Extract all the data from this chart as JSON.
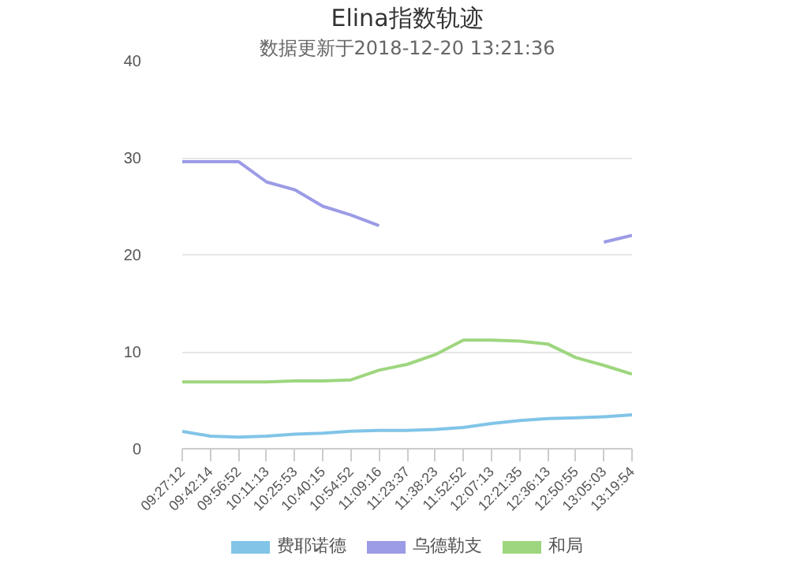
{
  "chart_data": {
    "type": "line",
    "title": "Elina指数轨迹",
    "subtitle": "数据更新于2018-12-20 13:21:36",
    "categories": [
      "09:27:12",
      "09:42:14",
      "09:56:52",
      "10:11:13",
      "10:25:53",
      "10:40:15",
      "10:54:52",
      "11:09:16",
      "11:23:37",
      "11:38:23",
      "11:52:52",
      "12:07:13",
      "12:21:35",
      "12:36:13",
      "12:50:55",
      "13:05:03",
      "13:19:54"
    ],
    "series": [
      {
        "name": "费耶诺德",
        "color": "#81c4e8",
        "values": [
          1.8,
          1.3,
          1.2,
          1.3,
          1.5,
          1.6,
          1.8,
          1.9,
          1.9,
          2.0,
          2.2,
          2.6,
          2.9,
          3.1,
          3.2,
          3.3,
          3.5
        ]
      },
      {
        "name": "乌德勒支",
        "color": "#9b9be6",
        "values": [
          29.6,
          29.6,
          29.6,
          27.5,
          26.7,
          25.0,
          24.1,
          23.0,
          null,
          null,
          null,
          null,
          null,
          null,
          null,
          21.3,
          22.0
        ]
      },
      {
        "name": "和局",
        "color": "#9ed67f",
        "values": [
          6.9,
          6.9,
          6.9,
          6.9,
          7.0,
          7.0,
          7.1,
          8.1,
          8.7,
          9.7,
          11.2,
          11.2,
          11.1,
          10.8,
          9.4,
          8.6,
          7.7
        ]
      }
    ],
    "ylim": [
      0,
      40
    ],
    "yticks": [
      0,
      10,
      20,
      30,
      40
    ],
    "grid": "y",
    "legend": "bottom",
    "marker": "none",
    "line_style": "solid"
  }
}
